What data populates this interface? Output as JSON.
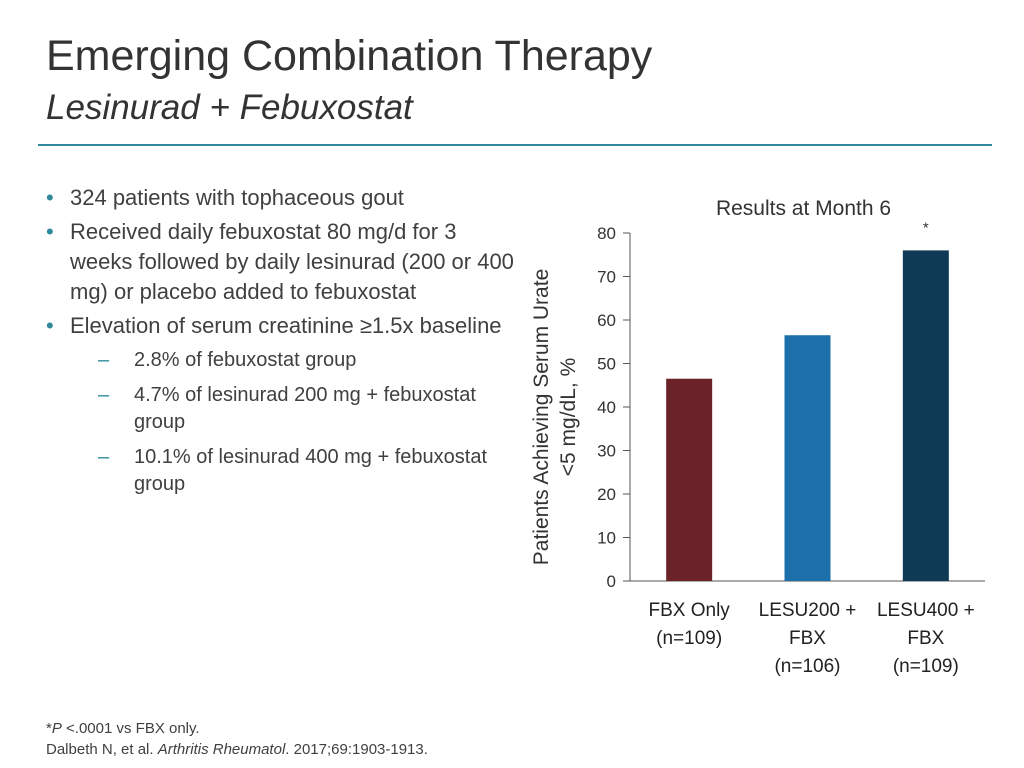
{
  "slide": {
    "title": "Emerging Combination Therapy",
    "subtitle": "Lesinurad + Febuxostat"
  },
  "bullets": [
    "324 patients with tophaceous gout",
    "Received daily febuxostat 80 mg/d for 3 weeks followed by daily lesinurad (200 or 400 mg) or placebo added to febuxostat",
    "Elevation of serum creatinine ≥1.5x baseline"
  ],
  "sub_bullets": [
    "2.8% of febuxostat group",
    "4.7% of lesinurad 200 mg + febuxostat group",
    "10.1% of lesinurad 400 mg + febuxostat group"
  ],
  "footnote": {
    "star": "*",
    "p_label": "P",
    "p_text": " <.0001 vs FBX only.",
    "ref_authors": "Dalbeth N, et al. ",
    "ref_journal": "Arthritis Rheumatol",
    "ref_rest": ". 2017;69:1903-1913."
  },
  "colors": {
    "accent": "#2d8a9a",
    "bar_fbx": "#6b2228",
    "bar_lesu200": "#1c6fa8",
    "bar_lesu400": "#0e3a55"
  },
  "chart_data": {
    "type": "bar",
    "title": "Results at Month 6",
    "ylabel": "Patients Achieving Serum Urate <5 mg/dL, %",
    "xlabel": "",
    "ylim": [
      0,
      80
    ],
    "yticks": [
      0,
      10,
      20,
      30,
      40,
      50,
      60,
      70,
      80
    ],
    "categories": [
      [
        "FBX Only",
        "(n=109)"
      ],
      [
        "LESU200 +",
        "FBX",
        "(n=106)"
      ],
      [
        "LESU400 +",
        "FBX",
        "(n=109)"
      ]
    ],
    "values": [
      46.5,
      56.5,
      76
    ],
    "bar_colors": [
      "#6b2228",
      "#1c6fa8",
      "#0e3a55"
    ],
    "annotations": [
      "",
      "",
      "*"
    ],
    "grid": false,
    "legend": "none"
  }
}
